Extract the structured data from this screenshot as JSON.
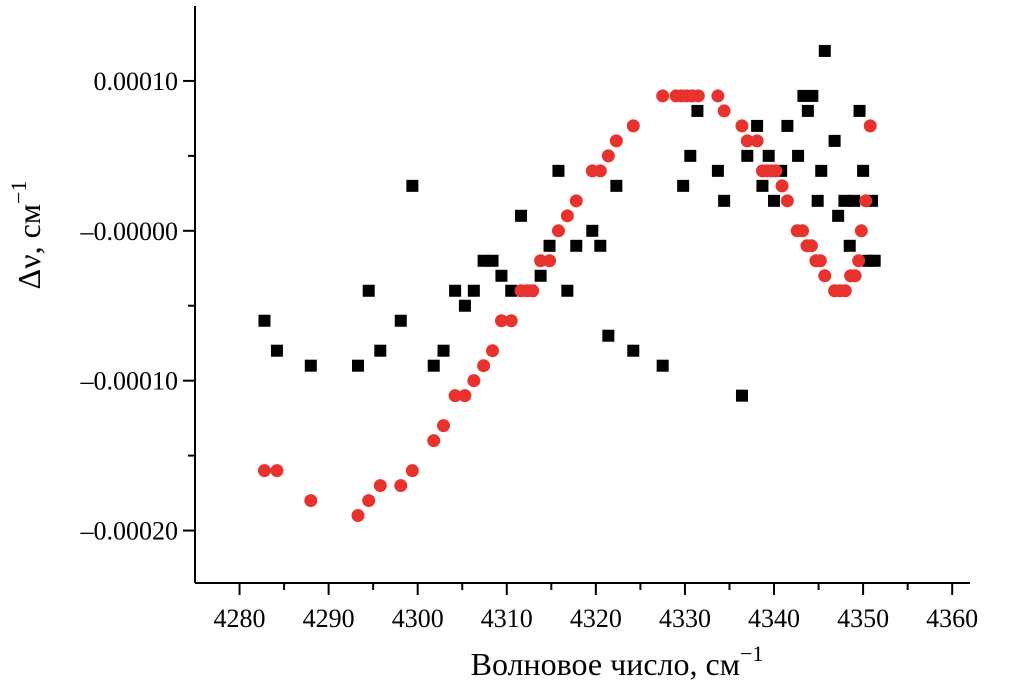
{
  "chart_data": {
    "type": "scatter",
    "xlabel": "Волновое число, см",
    "xlabel_sup": "−1",
    "ylabel": "Δν, см",
    "ylabel_sup": "−1",
    "xlim": [
      4275,
      4362
    ],
    "ylim": [
      -0.000235,
      0.00015
    ],
    "x_ticks": [
      4280,
      4290,
      4300,
      4310,
      4320,
      4330,
      4340,
      4350,
      4360
    ],
    "x_tick_labels": [
      "4280",
      "4290",
      "4300",
      "4310",
      "4320",
      "4330",
      "4340",
      "4350",
      "4360"
    ],
    "y_ticks": [
      0.0001,
      0.0,
      -0.0001,
      -0.0002
    ],
    "y_tick_labels": [
      "0.00010",
      "–0.00000",
      "–0.00010",
      "–0.00020"
    ],
    "grid": false,
    "series": [
      {
        "marker": "square",
        "color": "#000000",
        "points": [
          [
            4282.8,
            -6e-05
          ],
          [
            4284.2,
            -8e-05
          ],
          [
            4288.0,
            -9e-05
          ],
          [
            4293.3,
            -9e-05
          ],
          [
            4294.5,
            -4e-05
          ],
          [
            4295.8,
            -8e-05
          ],
          [
            4298.1,
            -6e-05
          ],
          [
            4299.4,
            3e-05
          ],
          [
            4301.8,
            -9e-05
          ],
          [
            4302.9,
            -8e-05
          ],
          [
            4304.2,
            -4e-05
          ],
          [
            4305.3,
            -5e-05
          ],
          [
            4306.3,
            -4e-05
          ],
          [
            4307.4,
            -2e-05
          ],
          [
            4308.4,
            -2e-05
          ],
          [
            4309.4,
            -3e-05
          ],
          [
            4310.5,
            -4e-05
          ],
          [
            4311.6,
            1e-05
          ],
          [
            4312.6,
            -4e-05
          ],
          [
            4313.8,
            -3e-05
          ],
          [
            4314.8,
            -1e-05
          ],
          [
            4315.8,
            4e-05
          ],
          [
            4316.8,
            -4e-05
          ],
          [
            4317.8,
            -1e-05
          ],
          [
            4319.6,
            0.0
          ],
          [
            4320.5,
            -1e-05
          ],
          [
            4321.4,
            -7e-05
          ],
          [
            4322.3,
            3e-05
          ],
          [
            4324.2,
            -8e-05
          ],
          [
            4327.5,
            -9e-05
          ],
          [
            4329.8,
            3e-05
          ],
          [
            4330.6,
            5e-05
          ],
          [
            4331.4,
            8e-05
          ],
          [
            4333.7,
            4e-05
          ],
          [
            4334.4,
            2e-05
          ],
          [
            4336.4,
            -0.00011
          ],
          [
            4337.0,
            5e-05
          ],
          [
            4338.1,
            7e-05
          ],
          [
            4338.7,
            3e-05
          ],
          [
            4339.4,
            5e-05
          ],
          [
            4340.0,
            2e-05
          ],
          [
            4340.8,
            4e-05
          ],
          [
            4341.5,
            7e-05
          ],
          [
            4342.7,
            5e-05
          ],
          [
            4343.3,
            9e-05
          ],
          [
            4343.8,
            8e-05
          ],
          [
            4344.3,
            9e-05
          ],
          [
            4344.9,
            2e-05
          ],
          [
            4345.3,
            4e-05
          ],
          [
            4345.7,
            0.00012
          ],
          [
            4346.8,
            6e-05
          ],
          [
            4347.2,
            1e-05
          ],
          [
            4347.9,
            2e-05
          ],
          [
            4348.5,
            -1e-05
          ],
          [
            4349.0,
            2e-05
          ],
          [
            4349.6,
            8e-05
          ],
          [
            4350.0,
            4e-05
          ],
          [
            4350.6,
            -2e-05
          ],
          [
            4351.0,
            2e-05
          ],
          [
            4351.3,
            -2e-05
          ]
        ]
      },
      {
        "marker": "circle",
        "color": "#e8322e",
        "points": [
          [
            4282.8,
            -0.00016
          ],
          [
            4284.2,
            -0.00016
          ],
          [
            4288.0,
            -0.00018
          ],
          [
            4293.3,
            -0.00019
          ],
          [
            4294.5,
            -0.00018
          ],
          [
            4295.8,
            -0.00017
          ],
          [
            4298.1,
            -0.00017
          ],
          [
            4299.4,
            -0.00016
          ],
          [
            4301.8,
            -0.00014
          ],
          [
            4302.9,
            -0.00013
          ],
          [
            4304.2,
            -0.00011
          ],
          [
            4305.3,
            -0.00011
          ],
          [
            4306.3,
            -0.0001
          ],
          [
            4307.4,
            -9e-05
          ],
          [
            4308.4,
            -8e-05
          ],
          [
            4309.4,
            -6e-05
          ],
          [
            4310.5,
            -6e-05
          ],
          [
            4311.6,
            -4e-05
          ],
          [
            4312.3,
            -4e-05
          ],
          [
            4312.9,
            -4e-05
          ],
          [
            4313.8,
            -2e-05
          ],
          [
            4314.8,
            -2e-05
          ],
          [
            4315.8,
            0.0
          ],
          [
            4316.8,
            1e-05
          ],
          [
            4317.8,
            2e-05
          ],
          [
            4319.6,
            4e-05
          ],
          [
            4320.5,
            4e-05
          ],
          [
            4321.4,
            5e-05
          ],
          [
            4322.3,
            6e-05
          ],
          [
            4324.2,
            7e-05
          ],
          [
            4327.5,
            9e-05
          ],
          [
            4329.0,
            9e-05
          ],
          [
            4329.6,
            9e-05
          ],
          [
            4330.2,
            9e-05
          ],
          [
            4330.8,
            9e-05
          ],
          [
            4331.5,
            9e-05
          ],
          [
            4333.7,
            9e-05
          ],
          [
            4334.4,
            8e-05
          ],
          [
            4336.4,
            7e-05
          ],
          [
            4337.0,
            6e-05
          ],
          [
            4338.1,
            6e-05
          ],
          [
            4338.7,
            4e-05
          ],
          [
            4339.2,
            4e-05
          ],
          [
            4339.7,
            4e-05
          ],
          [
            4340.2,
            4e-05
          ],
          [
            4340.9,
            3e-05
          ],
          [
            4341.5,
            2e-05
          ],
          [
            4342.6,
            0.0
          ],
          [
            4343.2,
            0.0
          ],
          [
            4343.7,
            -1e-05
          ],
          [
            4344.2,
            -1e-05
          ],
          [
            4344.7,
            -2e-05
          ],
          [
            4345.2,
            -2e-05
          ],
          [
            4345.7,
            -3e-05
          ],
          [
            4346.8,
            -4e-05
          ],
          [
            4347.4,
            -4e-05
          ],
          [
            4348.0,
            -4e-05
          ],
          [
            4348.6,
            -3e-05
          ],
          [
            4349.1,
            -3e-05
          ],
          [
            4349.5,
            -2e-05
          ],
          [
            4349.8,
            0.0
          ],
          [
            4350.3,
            2e-05
          ],
          [
            4350.8,
            7e-05
          ]
        ]
      }
    ]
  }
}
